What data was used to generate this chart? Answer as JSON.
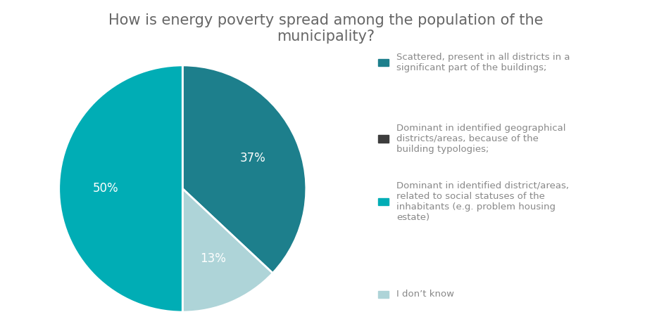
{
  "title": "How is energy poverty spread among the population of the\nmunicipality?",
  "wedge_sizes": [
    37,
    13,
    50
  ],
  "wedge_colors": [
    "#1d7f8c",
    "#aed4d8",
    "#00adb5"
  ],
  "wedge_labels": [
    "37%",
    "13%",
    "50%"
  ],
  "legend_entries": [
    "Scattered, present in all districts in a\nsignificant part of the buildings;",
    "Dominant in identified geographical\ndistricts/areas, because of the\nbuilding typologies;",
    "Dominant in identified district/areas,\nrelated to social statuses of the\ninhabitants (e.g. problem housing\nestate)",
    "I don’t know"
  ],
  "legend_colors": [
    "#1d7f8c",
    "#3d3d3d",
    "#00adb5",
    "#aed4d8"
  ],
  "background_color": "#ffffff",
  "title_fontsize": 15,
  "label_fontsize": 12,
  "legend_fontsize": 9.5,
  "startangle": 90
}
